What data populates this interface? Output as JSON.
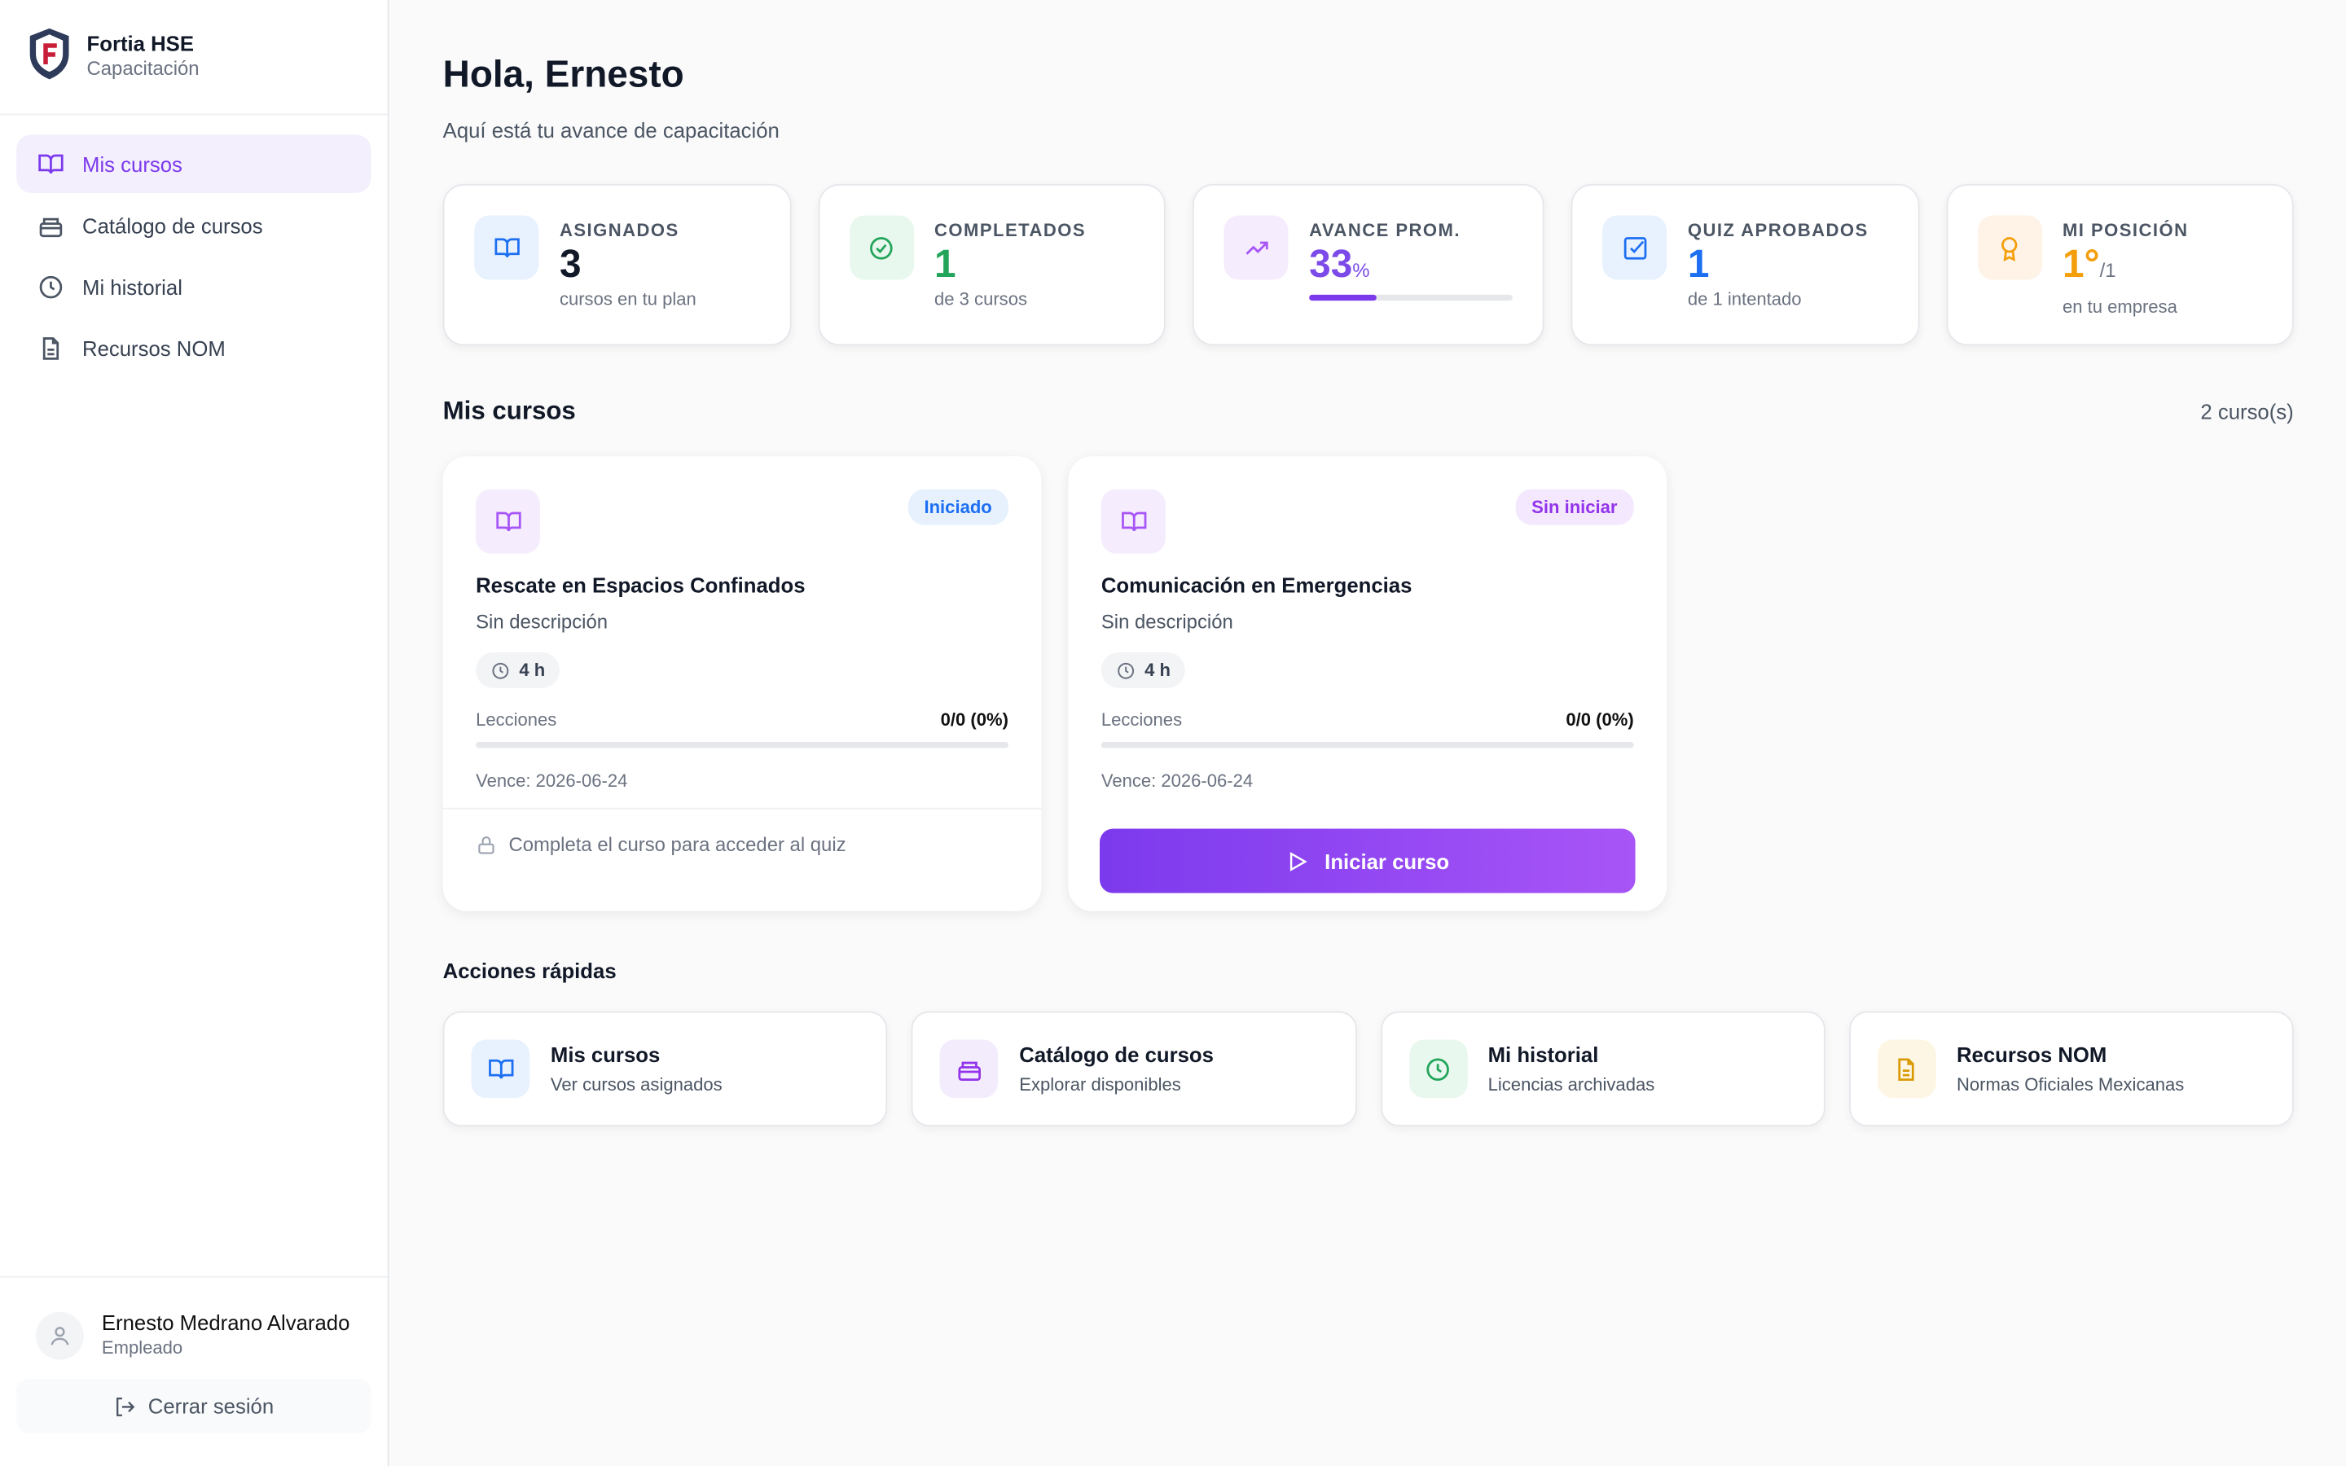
{
  "sidebar": {
    "brand": "Fortia HSE",
    "brand_sub": "Capacitación",
    "nav": [
      "Mis cursos",
      "Catálogo de cursos",
      "Mi historial",
      "Recursos NOM"
    ],
    "user_name": "Ernesto Medrano Alvarado",
    "user_role": "Empleado",
    "logout": "Cerrar sesión"
  },
  "header": {
    "title": "Hola, Ernesto",
    "subtitle": "Aquí está tu avance de capacitación"
  },
  "stats": [
    {
      "label": "ASIGNADOS",
      "value": "3",
      "sub": "cursos en tu plan"
    },
    {
      "label": "COMPLETADOS",
      "value": "1",
      "sub": "de 3 cursos"
    },
    {
      "label": "AVANCE PROM.",
      "value": 33,
      "unit": "%"
    },
    {
      "label": "QUIZ APROBADOS",
      "value": "1",
      "sub": "de 1 intentado"
    },
    {
      "label": "MI POSICIÓN",
      "value": "1°",
      "unit": "/1",
      "sub": "en tu empresa"
    }
  ],
  "courses_section": {
    "title": "Mis cursos",
    "count": "2 curso(s)"
  },
  "courses": [
    {
      "status": "Iniciado",
      "title": "Rescate en Espacios Confinados",
      "description": "Sin descripción",
      "duration": "4 h",
      "lessons_label": "Lecciones",
      "lessons": "0/0 (0%)",
      "due": "Vence: 2026-06-24",
      "footer": "Completa el curso para acceder al quiz"
    },
    {
      "status": "Sin iniciar",
      "title": "Comunicación en Emergencias",
      "description": "Sin descripción",
      "duration": "4 h",
      "lessons_label": "Lecciones",
      "lessons": "0/0 (0%)",
      "due": "Vence: 2026-06-24",
      "button": "Iniciar curso"
    }
  ],
  "quick_actions": {
    "title": "Acciones rápidas",
    "items": [
      {
        "title": "Mis cursos",
        "sub": "Ver cursos asignados"
      },
      {
        "title": "Catálogo de cursos",
        "sub": "Explorar disponibles"
      },
      {
        "title": "Mi historial",
        "sub": "Licencias archivadas"
      },
      {
        "title": "Recursos NOM",
        "sub": "Normas Oficiales Mexicanas"
      }
    ]
  }
}
